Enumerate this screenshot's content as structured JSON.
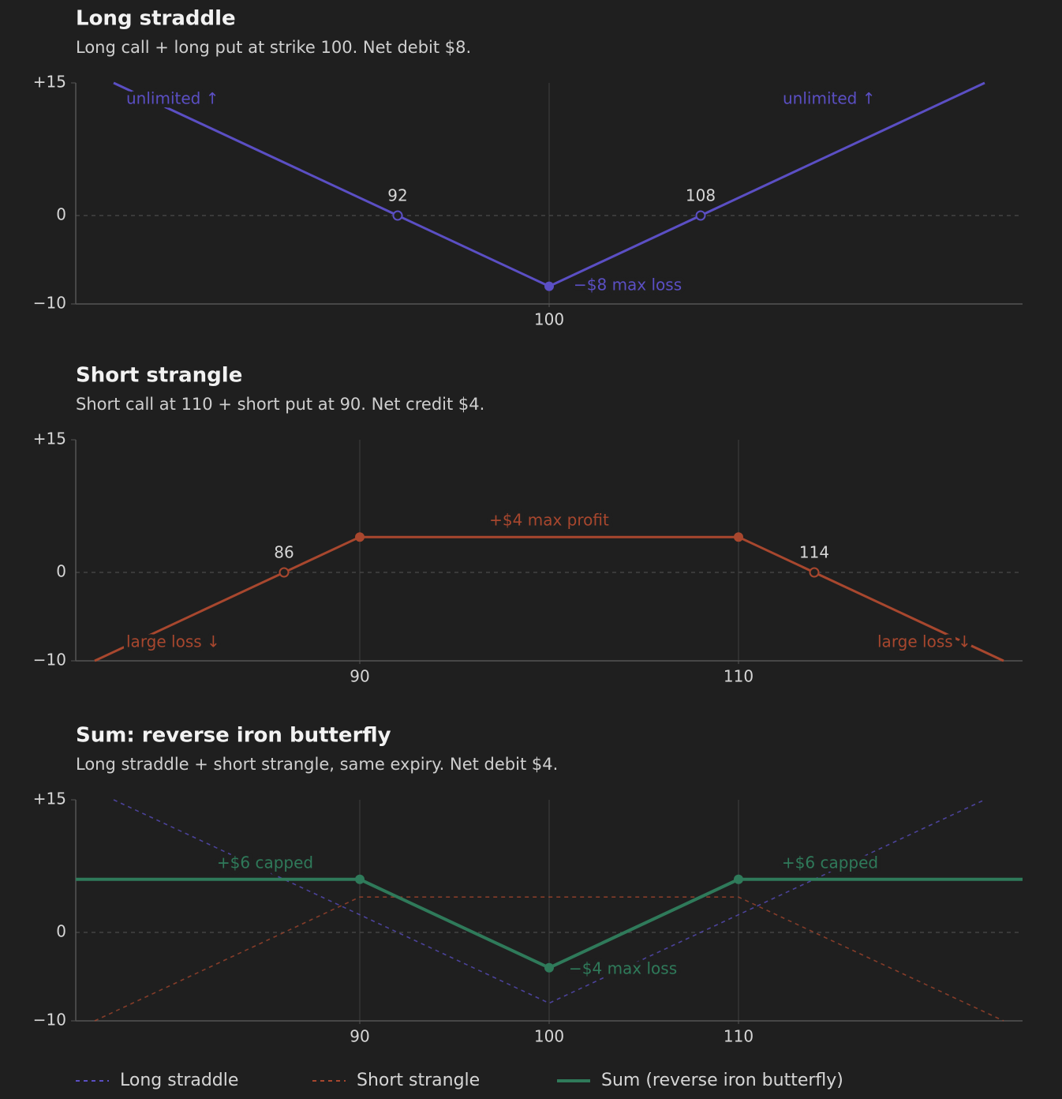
{
  "chart_data": [
    {
      "type": "line",
      "title": "Long straddle",
      "subtitle": "Long call + long put at strike 100. Net debit $8.",
      "xlim": [
        75,
        125
      ],
      "ylim": [
        -10,
        15
      ],
      "xticks": [
        100
      ],
      "yticks": [
        {
          "value": 15,
          "label": "+15"
        },
        0,
        {
          "value": -10,
          "label": "−10"
        }
      ],
      "zero_line": true,
      "grid": true,
      "series": [
        {
          "name": "Long straddle",
          "color": "#5b4fc4",
          "style": "solid",
          "x": [
            77,
            100,
            123
          ],
          "values": [
            15,
            -8,
            15
          ]
        }
      ],
      "breakevens": [
        92,
        108
      ],
      "annotations": [
        "unlimited ↑",
        "unlimited ↑",
        "−$8 max loss"
      ]
    },
    {
      "type": "line",
      "title": "Short strangle",
      "subtitle": "Short call at 110 + short put at 90. Net credit $4.",
      "xlim": [
        75,
        125
      ],
      "ylim": [
        -10,
        15
      ],
      "xticks": [
        90,
        110
      ],
      "yticks": [
        {
          "value": 15,
          "label": "+15"
        },
        0,
        {
          "value": -10,
          "label": "−10"
        }
      ],
      "zero_line": true,
      "grid": true,
      "series": [
        {
          "name": "Short strangle",
          "color": "#a8472e",
          "style": "solid",
          "x": [
            76,
            90,
            110,
            124
          ],
          "values": [
            -10,
            4,
            4,
            -10
          ]
        }
      ],
      "breakevens": [
        86,
        114
      ],
      "annotations": [
        "+$4 max profit",
        "large loss ↓",
        "large loss ↓"
      ]
    },
    {
      "type": "line",
      "title": "Sum: reverse iron butterfly",
      "subtitle": "Long straddle + short strangle, same expiry. Net debit $4.",
      "xlim": [
        75,
        125
      ],
      "ylim": [
        -10,
        15
      ],
      "xticks": [
        90,
        100,
        110
      ],
      "yticks": [
        {
          "value": 15,
          "label": "+15"
        },
        0,
        {
          "value": -10,
          "label": "−10"
        }
      ],
      "zero_line": true,
      "grid": true,
      "legend": "bottom",
      "series": [
        {
          "name": "Long straddle",
          "color": "#5b4fc4",
          "style": "dashed",
          "x": [
            77,
            100,
            123
          ],
          "values": [
            15,
            -8,
            15
          ]
        },
        {
          "name": "Short strangle",
          "color": "#a8472e",
          "style": "dashed",
          "x": [
            76,
            90,
            110,
            124
          ],
          "values": [
            -10,
            4,
            4,
            -10
          ]
        },
        {
          "name": "Sum (reverse iron butterfly)",
          "color": "#2f7a5a",
          "style": "solid",
          "x": [
            75,
            90,
            100,
            110,
            125
          ],
          "values": [
            6,
            6,
            -4,
            6,
            6
          ]
        }
      ],
      "annotations": [
        "+$6 capped",
        "+$6 capped",
        "−$4 max loss"
      ]
    }
  ]
}
